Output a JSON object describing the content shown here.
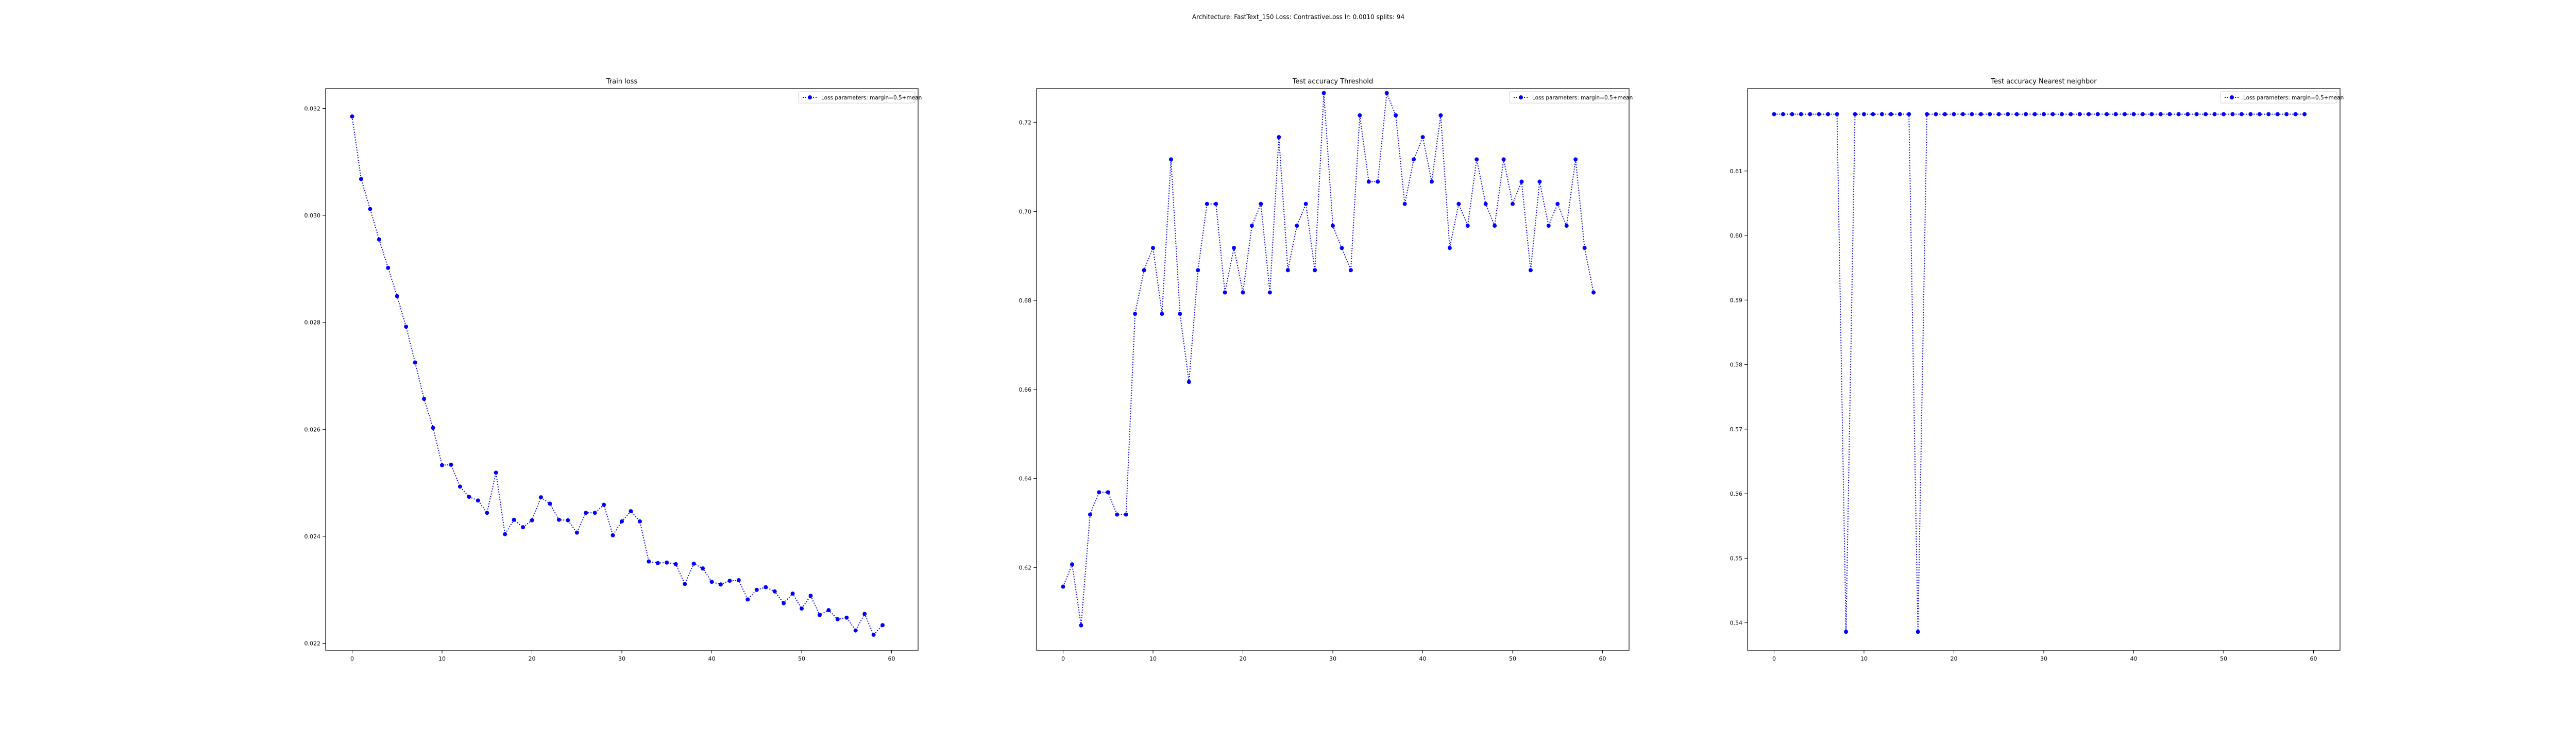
{
  "suptitle": "Architecture: FastText_150 Loss: ContrastiveLoss lr: 0.0010 splits: 94",
  "colors": {
    "series": "#0000ff",
    "axes": "#000000"
  },
  "chart_data": [
    {
      "type": "line",
      "title": "Train loss",
      "legend": {
        "label": "Loss parameters: margin=0.5+mean",
        "placement": "upper right"
      },
      "xlim": [
        -2.95,
        62.95
      ],
      "ylim": [
        0.02187,
        0.03237
      ],
      "xticks": [
        0,
        10,
        20,
        30,
        40,
        50,
        60
      ],
      "yticks": [
        0.022,
        0.024,
        0.026,
        0.028,
        0.03,
        0.032
      ],
      "ytick_labels": [
        "0.022",
        "0.024",
        "0.026",
        "0.028",
        "0.030",
        "0.032"
      ],
      "x": [
        0,
        1,
        2,
        3,
        4,
        5,
        6,
        7,
        8,
        9,
        10,
        11,
        12,
        13,
        14,
        15,
        16,
        17,
        18,
        19,
        20,
        21,
        22,
        23,
        24,
        25,
        26,
        27,
        28,
        29,
        30,
        31,
        32,
        33,
        34,
        35,
        36,
        37,
        38,
        39,
        40,
        41,
        42,
        43,
        44,
        45,
        46,
        47,
        48,
        49,
        50,
        51,
        52,
        53,
        54,
        55,
        56,
        57,
        58,
        59
      ],
      "series": [
        {
          "marker": "circle",
          "line_style": "dotted",
          "values": [
            0.03185,
            0.03068,
            0.03012,
            0.02955,
            0.02902,
            0.02849,
            0.02792,
            0.02725,
            0.02657,
            0.02603,
            0.02533,
            0.02534,
            0.02493,
            0.02474,
            0.02467,
            0.02444,
            0.02519,
            0.02404,
            0.02431,
            0.02417,
            0.0243,
            0.02473,
            0.02461,
            0.02431,
            0.0243,
            0.02407,
            0.02444,
            0.02444,
            0.02459,
            0.02402,
            0.02428,
            0.02447,
            0.02428,
            0.02353,
            0.0235,
            0.02351,
            0.02348,
            0.02311,
            0.02349,
            0.0234,
            0.02315,
            0.0231,
            0.02317,
            0.02318,
            0.02282,
            0.023,
            0.02305,
            0.02297,
            0.02275,
            0.02293,
            0.02265,
            0.02289,
            0.02253,
            0.02262,
            0.02245,
            0.02248,
            0.02224,
            0.02255,
            0.02216,
            0.02234
          ]
        }
      ]
    },
    {
      "type": "line",
      "title": "Test accuracy Threshold",
      "legend": {
        "label": "Loss parameters: margin=0.5+mean",
        "placement": "upper right"
      },
      "xlim": [
        -2.95,
        62.95
      ],
      "ylim": [
        0.6014,
        0.7276
      ],
      "xticks": [
        0,
        10,
        20,
        30,
        40,
        50,
        60
      ],
      "yticks": [
        0.62,
        0.64,
        0.66,
        0.68,
        0.7,
        0.72
      ],
      "ytick_labels": [
        "0.62",
        "0.64",
        "0.66",
        "0.68",
        "0.70",
        "0.72"
      ],
      "x": [
        0,
        1,
        2,
        3,
        4,
        5,
        6,
        7,
        8,
        9,
        10,
        11,
        12,
        13,
        14,
        15,
        16,
        17,
        18,
        19,
        20,
        21,
        22,
        23,
        24,
        25,
        26,
        27,
        28,
        29,
        30,
        31,
        32,
        33,
        34,
        35,
        36,
        37,
        38,
        39,
        40,
        41,
        42,
        43,
        44,
        45,
        46,
        47,
        48,
        49,
        50,
        51,
        52,
        53,
        54,
        55,
        56,
        57,
        58,
        59
      ],
      "series": [
        {
          "marker": "circle",
          "line_style": "dotted",
          "values": [
            0.6157,
            0.6207,
            0.607,
            0.6319,
            0.6369,
            0.6369,
            0.6319,
            0.6319,
            0.677,
            0.6868,
            0.6918,
            0.677,
            0.7117,
            0.677,
            0.6617,
            0.6868,
            0.7017,
            0.7017,
            0.6818,
            0.6918,
            0.6818,
            0.6968,
            0.7017,
            0.6818,
            0.7167,
            0.6868,
            0.6968,
            0.7017,
            0.6868,
            0.7266,
            0.6968,
            0.6918,
            0.6868,
            0.7216,
            0.7067,
            0.7067,
            0.7266,
            0.7216,
            0.7017,
            0.7117,
            0.7167,
            0.7067,
            0.7216,
            0.6918,
            0.7017,
            0.6968,
            0.7117,
            0.7017,
            0.6968,
            0.7117,
            0.7017,
            0.7067,
            0.6868,
            0.7067,
            0.6968,
            0.7017,
            0.6968,
            0.7117,
            0.6918,
            0.6818
          ]
        }
      ]
    },
    {
      "type": "line",
      "title": "Test accuracy Nearest neighbor",
      "legend": {
        "label": "Loss parameters: margin=0.5+mean",
        "placement": "upper right"
      },
      "xlim": [
        -2.95,
        62.95
      ],
      "ylim": [
        0.53574,
        0.62276
      ],
      "xticks": [
        0,
        10,
        20,
        30,
        40,
        50,
        60
      ],
      "yticks": [
        0.54,
        0.55,
        0.56,
        0.57,
        0.58,
        0.59,
        0.6,
        0.61
      ],
      "ytick_labels": [
        "0.54",
        "0.55",
        "0.56",
        "0.57",
        "0.58",
        "0.59",
        "0.60",
        "0.61"
      ],
      "x": [
        0,
        1,
        2,
        3,
        4,
        5,
        6,
        7,
        8,
        9,
        10,
        11,
        12,
        13,
        14,
        15,
        16,
        17,
        18,
        19,
        20,
        21,
        22,
        23,
        24,
        25,
        26,
        27,
        28,
        29,
        30,
        31,
        32,
        33,
        34,
        35,
        36,
        37,
        38,
        39,
        40,
        41,
        42,
        43,
        44,
        45,
        46,
        47,
        48,
        49,
        50,
        51,
        52,
        53,
        54,
        55,
        56,
        57,
        58,
        59
      ],
      "series": [
        {
          "marker": "circle",
          "line_style": "dotted",
          "values": [
            0.6188,
            0.6188,
            0.6188,
            0.6188,
            0.6188,
            0.6188,
            0.6188,
            0.6188,
            0.5386,
            0.6188,
            0.6188,
            0.6188,
            0.6188,
            0.6188,
            0.6188,
            0.6188,
            0.5386,
            0.6188,
            0.6188,
            0.6188,
            0.6188,
            0.6188,
            0.6188,
            0.6188,
            0.6188,
            0.6188,
            0.6188,
            0.6188,
            0.6188,
            0.6188,
            0.6188,
            0.6188,
            0.6188,
            0.6188,
            0.6188,
            0.6188,
            0.6188,
            0.6188,
            0.6188,
            0.6188,
            0.6188,
            0.6188,
            0.6188,
            0.6188,
            0.6188,
            0.6188,
            0.6188,
            0.6188,
            0.6188,
            0.6188,
            0.6188,
            0.6188,
            0.6188,
            0.6188,
            0.6188,
            0.6188,
            0.6188,
            0.6188,
            0.6188,
            0.6188
          ]
        }
      ]
    }
  ]
}
